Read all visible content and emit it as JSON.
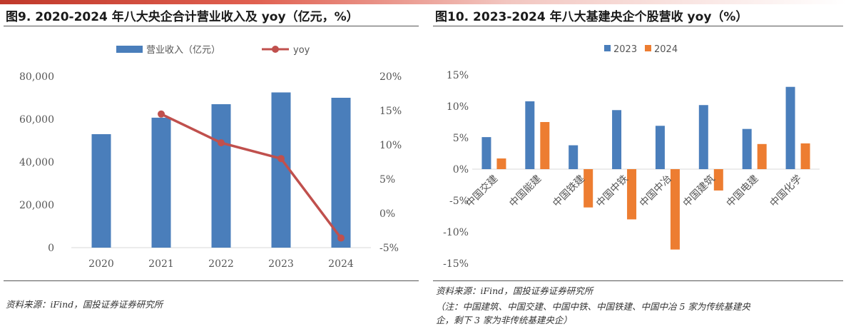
{
  "left": {
    "title": "图9. 2020-2024 年八大央企合计营业收入及 yoy（亿元，%）",
    "source": "资料来源：iFind，国投证券证券研究所"
  },
  "right": {
    "title": "图10. 2023-2024 年八大基建央企个股营收 yoy（%）",
    "source": "资料来源：iFind，国投证券证券研究所",
    "note_line1": "（注：中国建筑、中国交建、中国中铁、中国铁建、中国中冶 5 家为传统基建央",
    "note_line2": "企，剩下 3 家为非传统基建央企）"
  },
  "colors": {
    "bar_blue": "#4a7ebb",
    "line_red": "#c0504d",
    "bar_orange": "#ed7d31",
    "axis": "#d9d9d9"
  },
  "chart_data": [
    {
      "type": "bar",
      "categories": [
        "2020",
        "2021",
        "2022",
        "2023",
        "2024"
      ],
      "series": [
        {
          "name": "营业收入（亿元）",
          "type": "bar",
          "axis": "left",
          "values": [
            53000,
            60700,
            67000,
            72500,
            70000
          ]
        },
        {
          "name": "yoy",
          "type": "line",
          "axis": "right",
          "values": [
            null,
            14.5,
            10.3,
            8.0,
            -3.6
          ]
        }
      ],
      "ylim": [
        0,
        80000
      ],
      "yticks": [
        "0",
        "20,000",
        "40,000",
        "60,000",
        "80,000"
      ],
      "y2lim": [
        -5,
        20
      ],
      "y2ticks": [
        "-5%",
        "0%",
        "5%",
        "10%",
        "15%",
        "20%"
      ],
      "legend": "top-center",
      "grid": false
    },
    {
      "type": "bar",
      "categories": [
        "中国交建",
        "中国能建",
        "中国铁建",
        "中国中铁",
        "中国中冶",
        "中国建筑",
        "中国电建",
        "中国化学"
      ],
      "series": [
        {
          "name": "2023",
          "values": [
            5.1,
            10.8,
            3.8,
            9.4,
            6.9,
            10.2,
            6.4,
            13.1
          ]
        },
        {
          "name": "2024",
          "values": [
            1.7,
            7.5,
            -6.1,
            -8.0,
            -12.8,
            -3.4,
            4.0,
            4.1
          ]
        }
      ],
      "ylim": [
        -15,
        15
      ],
      "yticks": [
        "-15%",
        "-10%",
        "-5%",
        "0%",
        "5%",
        "10%",
        "15%"
      ],
      "legend": "top-center",
      "grid": false
    }
  ]
}
